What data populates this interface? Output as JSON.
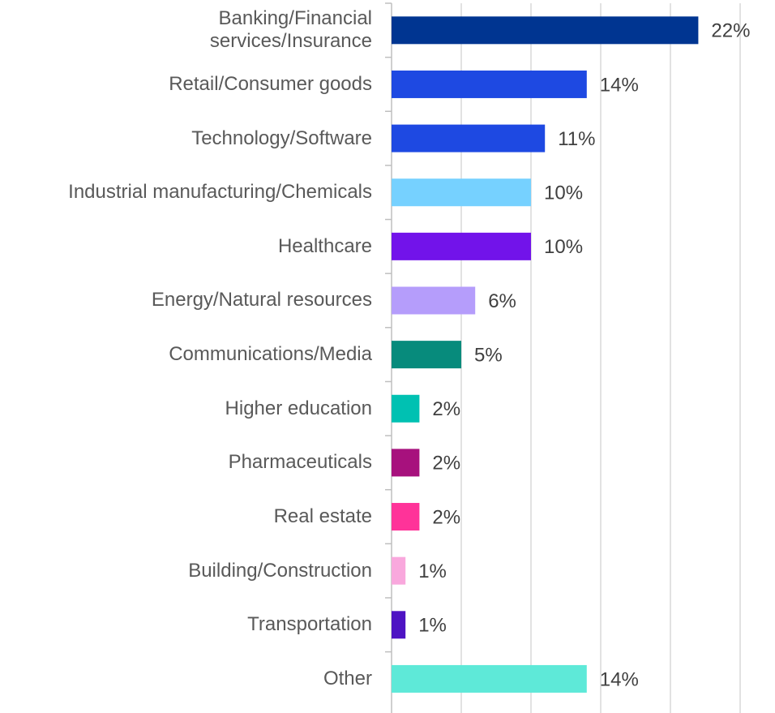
{
  "chart_data": {
    "type": "barh",
    "categories": [
      "Banking/Financial\nservices/Insurance",
      "Retail/Consumer goods",
      "Technology/Software",
      "Industrial manufacturing/Chemicals",
      "Healthcare",
      "Energy/Natural resources",
      "Communications/Media",
      "Higher education",
      "Pharmaceuticals",
      "Real estate",
      "Building/Construction",
      "Transportation",
      "Other"
    ],
    "values": [
      22,
      14,
      11,
      10,
      10,
      6,
      5,
      2,
      2,
      2,
      1,
      1,
      14
    ],
    "value_labels": [
      "22%",
      "14%",
      "11%",
      "10%",
      "10%",
      "6%",
      "5%",
      "2%",
      "2%",
      "2%",
      "1%",
      "1%",
      "14%"
    ],
    "colors": [
      "#003591",
      "#1e49e2",
      "#1e49e2",
      "#76d1ff",
      "#7213ea",
      "#b59dfb",
      "#078b7c",
      "#00c1b2",
      "#a7117d",
      "#ff3399",
      "#f9a8dd",
      "#4e13c3",
      "#5ee9d8"
    ],
    "xlim": [
      0,
      25
    ],
    "xticks": [
      0,
      5,
      10,
      15,
      20,
      25
    ],
    "grid": true
  }
}
